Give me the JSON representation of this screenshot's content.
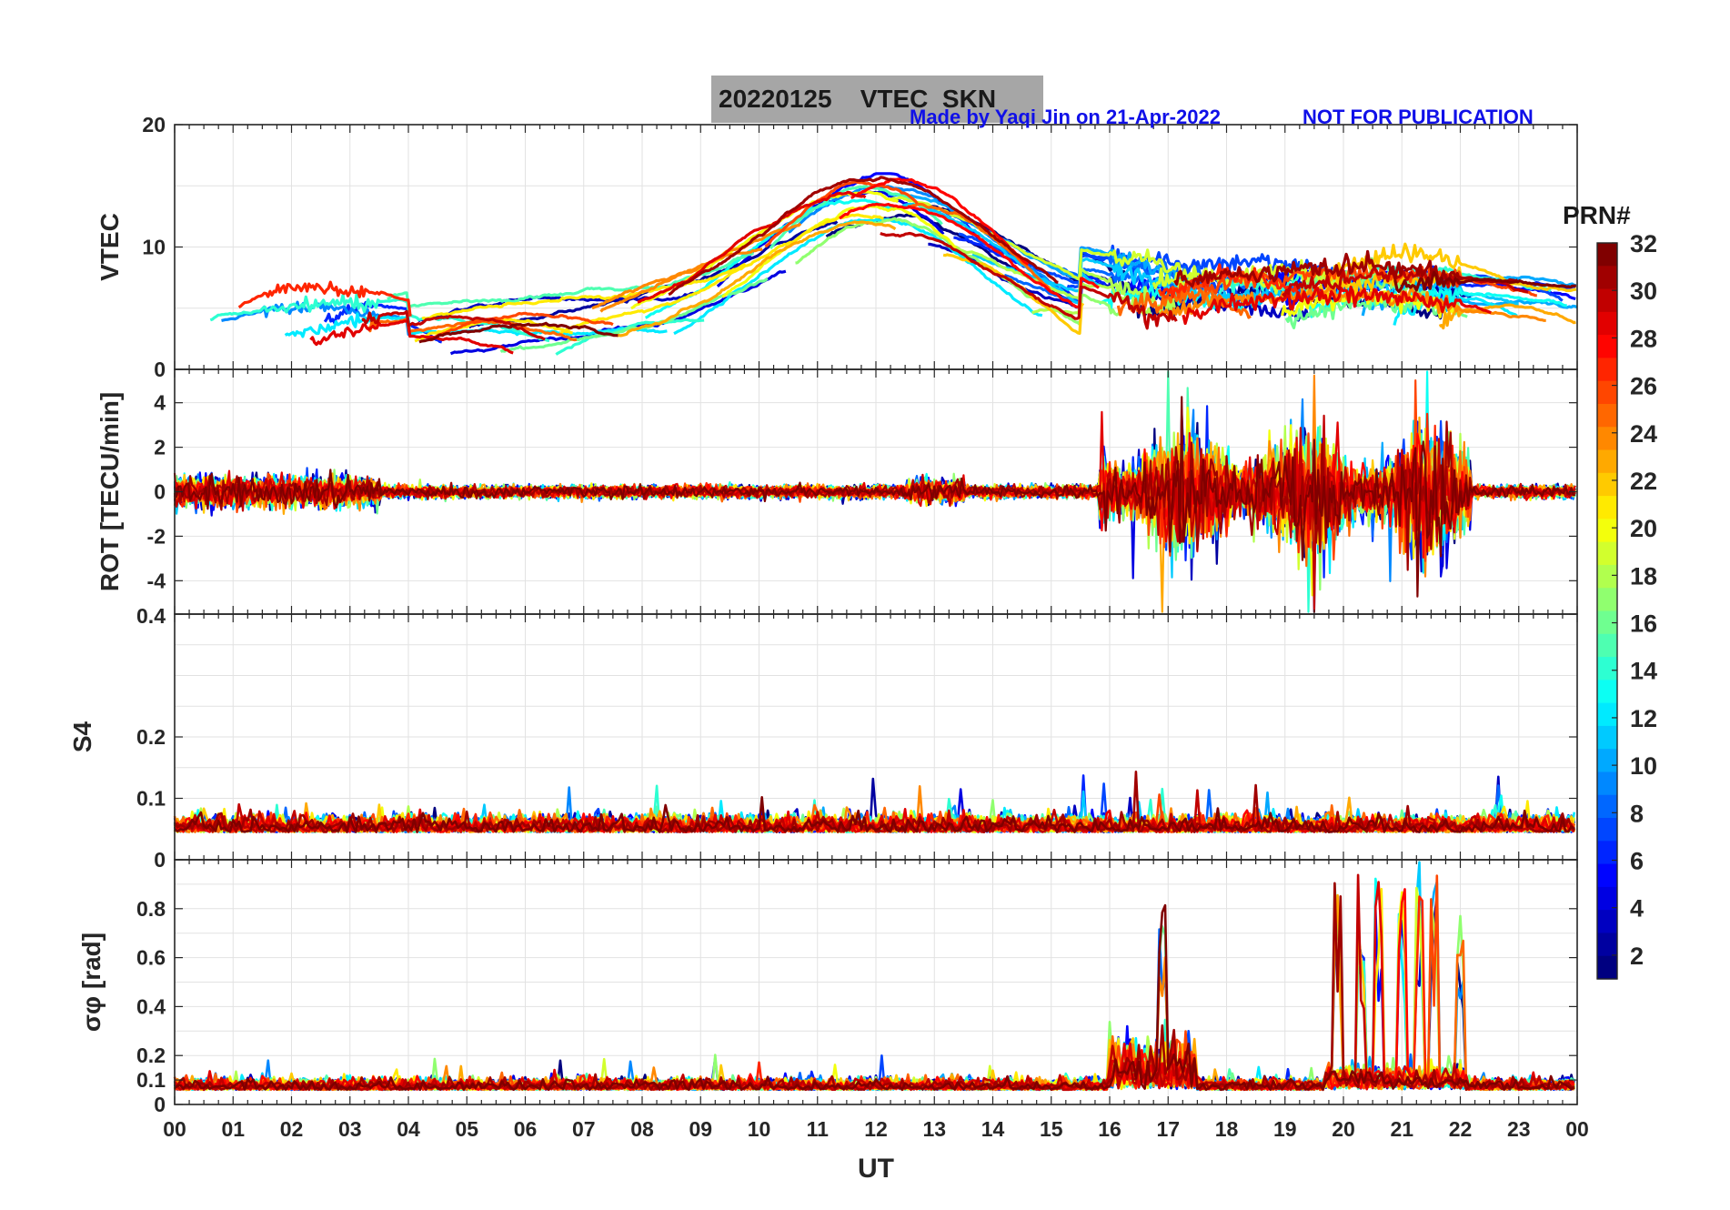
{
  "header": {
    "title": "20220125    VTEC  SKN",
    "credit": "Made by Yaqi Jin on 21-Apr-2022",
    "notice": "NOT FOR PUBLICATION"
  },
  "colorbar": {
    "label": "PRN#",
    "ticks": [
      "32",
      "30",
      "28",
      "26",
      "24",
      "22",
      "20",
      "18",
      "16",
      "14",
      "12",
      "10",
      "8",
      "6",
      "4",
      "2"
    ],
    "range": [
      1,
      32
    ],
    "colormap": "jet"
  },
  "x_axis": {
    "label": "UT",
    "ticks": [
      "00",
      "01",
      "02",
      "03",
      "04",
      "05",
      "06",
      "07",
      "08",
      "09",
      "10",
      "11",
      "12",
      "13",
      "14",
      "15",
      "16",
      "17",
      "18",
      "19",
      "20",
      "21",
      "22",
      "23",
      "00"
    ],
    "range_hours": [
      0,
      24
    ]
  },
  "chart_data": [
    {
      "type": "line",
      "ylabel": "VTEC",
      "ylim": [
        0,
        20
      ],
      "ytick_labels": [
        "20",
        "10",
        "0"
      ],
      "grid": true,
      "series_count": 32,
      "colored_by": "PRN#",
      "value_range_observed": [
        1.5,
        16
      ],
      "peak_hour": 12
    },
    {
      "type": "line",
      "ylabel": "ROT [TECU/min]",
      "ylim": [
        -5.5,
        5.5
      ],
      "ytick_labels": [
        "4",
        "2",
        "0",
        "-2",
        "-4"
      ],
      "grid": true,
      "series_count": 32,
      "colored_by": "PRN#",
      "disturbed_hours": [
        15.8,
        22.2
      ]
    },
    {
      "type": "line",
      "ylabel": "S4",
      "ylim": [
        0,
        0.4
      ],
      "ytick_labels": [
        "0.4",
        "0.2",
        "0.1",
        "0"
      ],
      "grid": true,
      "series_count": 32,
      "colored_by": "PRN#",
      "baseline": 0.05
    },
    {
      "type": "line",
      "ylabel": "σφ [rad]",
      "ylim": [
        0,
        1
      ],
      "ytick_labels": [
        "0.8",
        "0.6",
        "0.4",
        "0.2",
        "0.1",
        "0"
      ],
      "grid": true,
      "series_count": 32,
      "colored_by": "PRN#",
      "spike_hours": [
        16.9,
        19.9,
        20.3,
        20.6,
        21.0,
        21.3,
        21.55,
        22.0
      ],
      "max_value": 1.0
    }
  ]
}
